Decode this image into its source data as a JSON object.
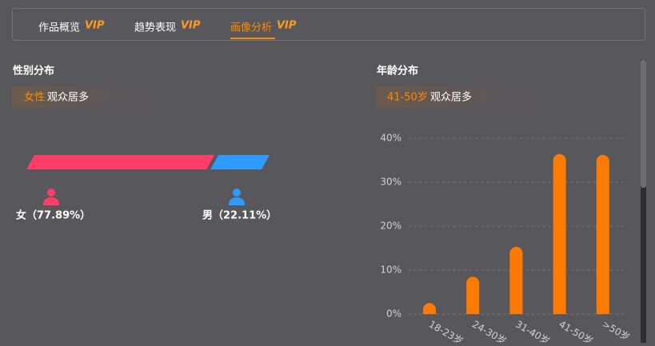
{
  "tabs": [
    {
      "label": "作品概览",
      "badge": "VIP"
    },
    {
      "label": "趋势表现",
      "badge": "VIP"
    },
    {
      "label": "画像分析",
      "badge": "VIP"
    }
  ],
  "active_tab": 2,
  "gender": {
    "title": "性别分布",
    "highlight": "女性",
    "highlight_suffix": "观众居多",
    "female": {
      "value": 77.89,
      "value_label": "女（77.89%）",
      "color": "#ff3d67"
    },
    "male": {
      "value": 22.11,
      "value_label": "男（22.11%）",
      "color": "#2f9bff"
    }
  },
  "age": {
    "title": "年龄分布",
    "highlight": "41-50岁",
    "highlight_suffix": "观众居多"
  },
  "chart_data": {
    "type": "bar",
    "categories": [
      "18-23岁",
      "24-30岁",
      "31-40岁",
      "41-50岁",
      ">50岁"
    ],
    "values": [
      2.5,
      8.5,
      15.3,
      36.4,
      36.2
    ],
    "color": "#ff7a00",
    "ylim": [
      0,
      40
    ],
    "yticks": [
      {
        "value": 0,
        "label": "0%"
      },
      {
        "value": 10,
        "label": "10%"
      },
      {
        "value": 20,
        "label": "20%"
      },
      {
        "value": 30,
        "label": "30%"
      },
      {
        "value": 40,
        "label": "40%"
      }
    ],
    "grid": true
  }
}
